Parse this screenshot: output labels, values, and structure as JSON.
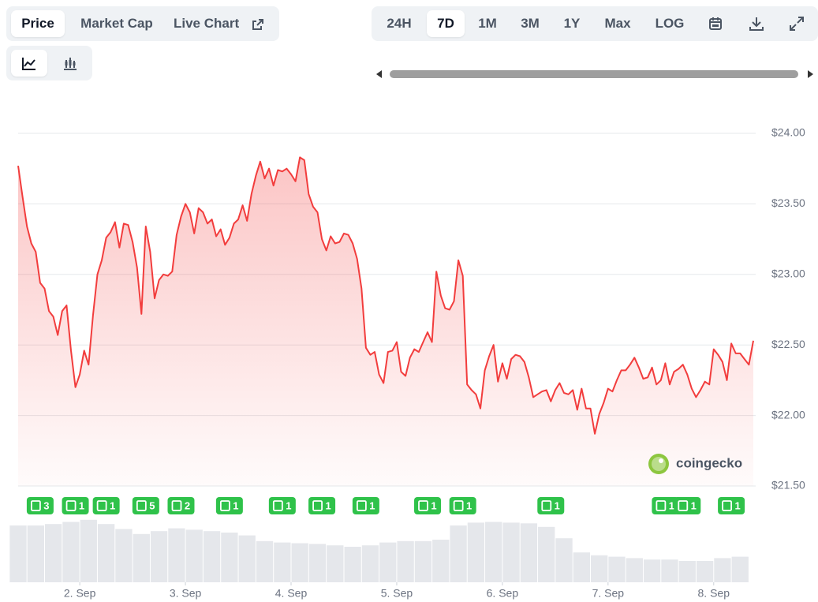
{
  "tabs": [
    "Price",
    "Market Cap",
    "Live Chart"
  ],
  "ranges": [
    "24H",
    "7D",
    "1M",
    "3M",
    "1Y",
    "Max",
    "LOG"
  ],
  "watermark": "coingecko",
  "chart_data": {
    "type": "line",
    "color": "#f23d3d",
    "x": [
      -14,
      -13,
      -12,
      -11,
      -10,
      -9,
      -8,
      -7,
      -6,
      -5,
      -4,
      -3,
      -2,
      -1,
      0,
      1,
      2,
      3,
      4,
      5,
      6,
      7,
      8,
      9,
      10,
      11,
      12,
      13,
      14,
      15,
      16,
      17,
      18,
      19,
      20,
      21,
      22,
      23,
      24,
      25,
      26,
      27,
      28,
      29,
      30,
      31,
      32,
      33,
      34,
      35,
      36,
      37,
      38,
      39,
      40,
      41,
      42,
      43,
      44,
      45,
      46,
      47,
      48,
      49,
      50,
      51,
      52,
      53,
      54,
      55,
      56,
      57,
      58,
      59,
      60,
      61,
      62,
      63,
      64,
      65,
      66,
      67,
      68,
      69,
      70,
      71,
      72,
      73,
      74,
      75,
      76,
      77,
      78,
      79,
      80,
      81,
      82,
      83,
      84,
      85,
      86,
      87,
      88,
      89,
      90,
      91,
      92,
      93,
      94,
      95,
      96,
      97,
      98,
      99,
      100,
      101,
      102,
      103,
      104,
      105,
      106,
      107,
      108,
      109,
      110,
      111,
      112,
      113,
      114,
      115,
      116,
      117,
      118,
      119,
      120,
      121,
      122,
      123,
      124,
      125,
      126,
      127,
      128,
      129,
      130,
      131,
      132,
      133,
      134,
      135,
      136,
      137,
      138,
      139,
      140,
      141,
      142,
      143,
      144,
      145,
      146,
      147,
      148,
      149,
      150,
      151,
      152,
      153
    ],
    "values": [
      23.77,
      23.55,
      23.34,
      23.22,
      23.16,
      22.94,
      22.9,
      22.74,
      22.7,
      22.57,
      22.74,
      22.78,
      22.46,
      22.2,
      22.29,
      22.46,
      22.36,
      22.71,
      23.0,
      23.1,
      23.26,
      23.3,
      23.37,
      23.19,
      23.36,
      23.35,
      23.23,
      23.05,
      22.72,
      23.34,
      23.16,
      22.83,
      22.96,
      23.0,
      22.99,
      23.02,
      23.28,
      23.41,
      23.5,
      23.44,
      23.29,
      23.47,
      23.44,
      23.36,
      23.39,
      23.27,
      23.32,
      23.21,
      23.26,
      23.36,
      23.39,
      23.49,
      23.38,
      23.57,
      23.7,
      23.8,
      23.68,
      23.75,
      23.63,
      23.74,
      23.73,
      23.75,
      23.71,
      23.66,
      23.83,
      23.81,
      23.57,
      23.48,
      23.44,
      23.25,
      23.17,
      23.27,
      23.22,
      23.23,
      23.29,
      23.28,
      23.22,
      23.11,
      22.9,
      22.48,
      22.43,
      22.45,
      22.29,
      22.23,
      22.45,
      22.46,
      22.52,
      22.31,
      22.28,
      22.41,
      22.47,
      22.45,
      22.52,
      22.59,
      22.52,
      23.02,
      22.85,
      22.76,
      22.75,
      22.81,
      23.1,
      22.99,
      22.22,
      22.18,
      22.15,
      22.05,
      22.32,
      22.42,
      22.5,
      22.24,
      22.37,
      22.26,
      22.4,
      22.43,
      22.42,
      22.38,
      22.27,
      22.13,
      22.15,
      22.17,
      22.18,
      22.1,
      22.18,
      22.23,
      22.16,
      22.15,
      22.18,
      22.04,
      22.19,
      22.05,
      22.05,
      21.87,
      22.01,
      22.09,
      22.19,
      22.17,
      22.25,
      22.32,
      22.32,
      22.36,
      22.41,
      22.34,
      22.26,
      22.27,
      22.34,
      22.22,
      22.25,
      22.37,
      22.22,
      22.31,
      22.33,
      22.36,
      22.29,
      22.19,
      22.13,
      22.18,
      22.24,
      22.22,
      22.47,
      22.43,
      22.38,
      22.25,
      22.51,
      22.44,
      22.44,
      22.4,
      22.36,
      22.53
    ],
    "xlim": [
      -14,
      153
    ],
    "xticks": [
      {
        "value": 0,
        "label": "2. Sep"
      },
      {
        "value": 24,
        "label": "3. Sep"
      },
      {
        "value": 48,
        "label": "4. Sep"
      },
      {
        "value": 72,
        "label": "5. Sep"
      },
      {
        "value": 96,
        "label": "6. Sep"
      },
      {
        "value": 120,
        "label": "7. Sep"
      },
      {
        "value": 144,
        "label": "8. Sep"
      }
    ],
    "ylim": [
      21.5,
      24
    ],
    "yticks": [
      {
        "value": 21.5,
        "label": "$21.50"
      },
      {
        "value": 22,
        "label": "$22.00"
      },
      {
        "value": 22.5,
        "label": "$22.50"
      },
      {
        "value": 23,
        "label": "$23.00"
      },
      {
        "value": 23.5,
        "label": "$23.50"
      },
      {
        "value": 24,
        "label": "$24.00"
      }
    ],
    "grid": true,
    "volume": {
      "color": "#e5e7eb",
      "step": 4,
      "ylim": [
        0,
        100
      ],
      "x": [
        -14,
        -10,
        -6,
        -2,
        2,
        6,
        10,
        14,
        18,
        22,
        26,
        30,
        34,
        38,
        42,
        46,
        50,
        54,
        58,
        62,
        66,
        70,
        74,
        78,
        82,
        86,
        90,
        94,
        98,
        102,
        106,
        110,
        114,
        118,
        122,
        126,
        130,
        134,
        138,
        142,
        146,
        150
      ],
      "values": [
        80,
        80,
        82,
        85,
        88,
        82,
        75,
        68,
        72,
        76,
        74,
        72,
        70,
        66,
        58,
        56,
        55,
        54,
        52,
        50,
        52,
        56,
        58,
        58,
        60,
        80,
        84,
        85,
        84,
        83,
        78,
        62,
        42,
        38,
        36,
        34,
        32,
        32,
        30,
        30,
        34,
        36
      ]
    },
    "news": {
      "color": "#2fc24a",
      "x": [
        -9,
        -1,
        6,
        15,
        23,
        34,
        46,
        55,
        65,
        79,
        87,
        107,
        133,
        138,
        148
      ],
      "counts": [
        3,
        1,
        1,
        5,
        2,
        1,
        1,
        1,
        1,
        1,
        1,
        1,
        1,
        1,
        1
      ]
    }
  }
}
